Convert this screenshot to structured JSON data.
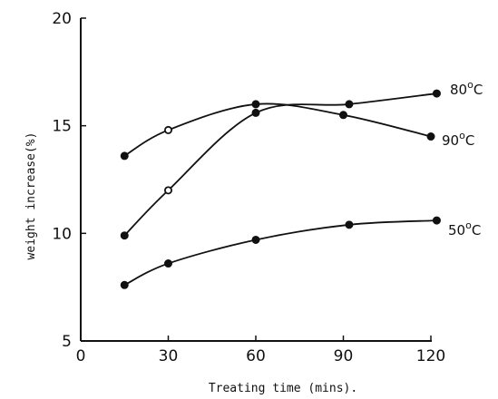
{
  "chart_data": {
    "type": "line",
    "title": "",
    "xlabel": "Treating time (mins).",
    "ylabel": "weight increase(%)",
    "xlim": [
      0,
      130
    ],
    "ylim": [
      5,
      20
    ],
    "xticks": [
      0,
      30,
      60,
      90,
      120
    ],
    "yticks": [
      5,
      10,
      15,
      20
    ],
    "xtick_labels": [
      "0",
      "30",
      "60",
      "90",
      "120"
    ],
    "ytick_labels": [
      "5",
      "10",
      "15",
      "20"
    ],
    "grid": false,
    "legend": "inline-right",
    "series": [
      {
        "name": "80°C",
        "name_base": "80",
        "name_sup": "o",
        "name_unit": "C",
        "x": [
          15,
          30,
          60,
          90,
          120
        ],
        "y": [
          13.6,
          14.8,
          16.0,
          15.5,
          14.5
        ],
        "markers": [
          "filled",
          "open",
          "filled",
          "filled",
          "filled"
        ]
      },
      {
        "name": "90°C",
        "name_base": "90",
        "name_sup": "o",
        "name_unit": "C",
        "x": [
          15,
          30,
          60,
          92,
          122
        ],
        "y": [
          9.9,
          12.0,
          15.6,
          16.0,
          16.5
        ],
        "markers": [
          "filled",
          "open",
          "filled",
          "filled",
          "filled"
        ]
      },
      {
        "name": "50°C",
        "name_base": "50",
        "name_sup": "o",
        "name_unit": "C",
        "x": [
          15,
          30,
          60,
          92,
          122
        ],
        "y": [
          7.6,
          8.6,
          9.7,
          10.4,
          10.6
        ],
        "markers": [
          "filled",
          "filled",
          "filled",
          "filled",
          "filled"
        ]
      }
    ]
  }
}
